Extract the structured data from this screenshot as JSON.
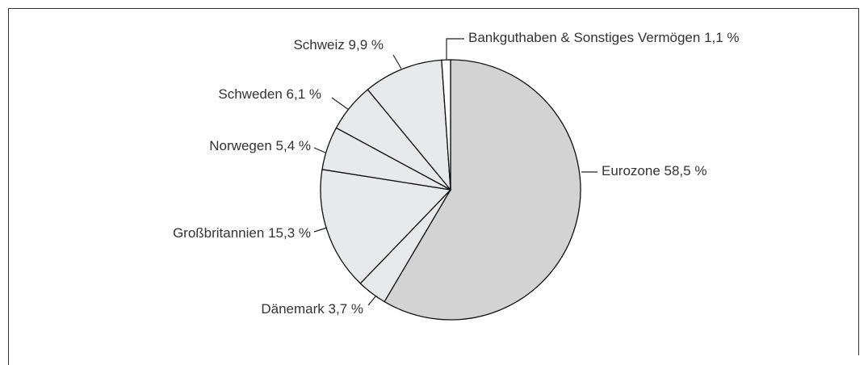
{
  "chart_data": {
    "type": "pie",
    "categories": [
      "Eurozone",
      "Dänemark",
      "Großbritannien",
      "Norwegen",
      "Schweden",
      "Schweiz",
      "Bankguthaben & Sonstiges Vermögen"
    ],
    "values": [
      58.5,
      3.7,
      15.3,
      5.4,
      6.1,
      9.9,
      1.1
    ],
    "value_labels": [
      "58,5 %",
      "3,7 %",
      "15,3 %",
      "5,4 %",
      "6,1 %",
      "9,9 %",
      "1,1 %"
    ],
    "colors": [
      "#d3d3d4",
      "#e8e9eb",
      "#e8e9eb",
      "#e8e9eb",
      "#e8e9eb",
      "#e8e9eb",
      "#ffffff"
    ],
    "start_angle": "top",
    "direction": "clockwise"
  }
}
